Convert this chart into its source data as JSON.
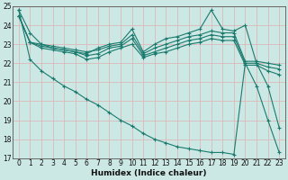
{
  "xlabel": "Humidex (Indice chaleur)",
  "ylabel": "",
  "bg_color": "#cce8e4",
  "grid_color": "#ddb8b8",
  "line_color": "#1a7a6e",
  "xlim": [
    -0.5,
    23.5
  ],
  "ylim": [
    17,
    25
  ],
  "yticks": [
    17,
    18,
    19,
    20,
    21,
    22,
    23,
    24,
    25
  ],
  "xticks": [
    0,
    1,
    2,
    3,
    4,
    5,
    6,
    7,
    8,
    9,
    10,
    11,
    12,
    13,
    14,
    15,
    16,
    17,
    18,
    19,
    20,
    21,
    22,
    23
  ],
  "series": [
    {
      "x": [
        0,
        1,
        2,
        3,
        4,
        5,
        6,
        7,
        8,
        9,
        10,
        11,
        12,
        13,
        14,
        15,
        16,
        17,
        18,
        19,
        20,
        21,
        22,
        23
      ],
      "y": [
        24.8,
        23.6,
        23.0,
        22.8,
        22.7,
        22.6,
        22.5,
        22.8,
        23.0,
        23.1,
        23.8,
        22.6,
        23.0,
        23.3,
        23.4,
        23.6,
        23.8,
        24.8,
        23.8,
        23.7,
        24.0,
        22.0,
        20.8,
        18.6
      ],
      "marker": "+"
    },
    {
      "x": [
        0,
        1,
        2,
        3,
        4,
        5,
        6,
        7,
        8,
        9,
        10,
        11,
        12,
        13,
        14,
        15,
        16,
        17,
        18,
        19,
        20,
        21,
        22,
        23
      ],
      "y": [
        24.5,
        23.1,
        23.0,
        22.9,
        22.8,
        22.7,
        22.6,
        22.7,
        22.9,
        23.0,
        23.5,
        22.5,
        22.8,
        23.0,
        23.2,
        23.4,
        23.5,
        23.7,
        23.6,
        23.6,
        22.1,
        22.1,
        22.0,
        21.9
      ],
      "marker": "+"
    },
    {
      "x": [
        0,
        1,
        2,
        3,
        4,
        5,
        6,
        7,
        8,
        9,
        10,
        11,
        12,
        13,
        14,
        15,
        16,
        17,
        18,
        19,
        20,
        21,
        22,
        23
      ],
      "y": [
        24.5,
        23.1,
        22.9,
        22.8,
        22.7,
        22.6,
        22.4,
        22.5,
        22.8,
        22.9,
        23.3,
        22.4,
        22.6,
        22.8,
        23.0,
        23.2,
        23.3,
        23.5,
        23.4,
        23.4,
        22.0,
        22.0,
        21.8,
        21.7
      ],
      "marker": "+"
    },
    {
      "x": [
        0,
        1,
        2,
        3,
        4,
        5,
        6,
        7,
        8,
        9,
        10,
        11,
        12,
        13,
        14,
        15,
        16,
        17,
        18,
        19,
        20,
        21,
        22,
        23
      ],
      "y": [
        24.5,
        23.1,
        22.8,
        22.7,
        22.6,
        22.5,
        22.2,
        22.3,
        22.6,
        22.8,
        23.0,
        22.3,
        22.5,
        22.6,
        22.8,
        23.0,
        23.1,
        23.3,
        23.2,
        23.2,
        21.9,
        21.9,
        21.6,
        21.4
      ],
      "marker": "+"
    },
    {
      "x": [
        0,
        1,
        2,
        3,
        4,
        5,
        6,
        7,
        8,
        9,
        10,
        11,
        12,
        13,
        14,
        15,
        16,
        17,
        18,
        19,
        20,
        21,
        22,
        23
      ],
      "y": [
        24.8,
        22.2,
        21.6,
        21.2,
        20.8,
        20.5,
        20.1,
        19.8,
        19.4,
        19.0,
        18.7,
        18.3,
        18.0,
        17.8,
        17.6,
        17.5,
        17.4,
        17.3,
        17.3,
        17.2,
        22.0,
        20.8,
        19.0,
        17.3
      ],
      "marker": "+"
    }
  ]
}
